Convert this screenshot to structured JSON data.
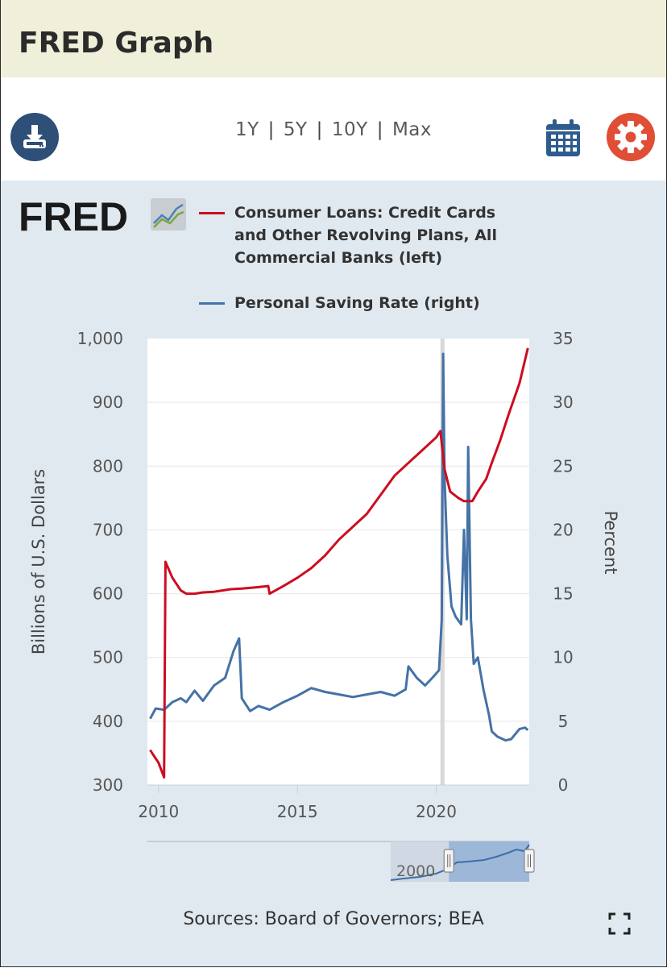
{
  "header": {
    "title": "FRED Graph"
  },
  "toolbar": {
    "ranges": [
      "1Y",
      "5Y",
      "10Y",
      "Max"
    ],
    "download_icon": "download-icon",
    "calendar_icon": "calendar-icon",
    "settings_icon": "gear-icon"
  },
  "logo": {
    "text": "FRED"
  },
  "colors": {
    "series1": "#cc0d20",
    "series2": "#4572a7",
    "panel": "#e1e9f0"
  },
  "chart_data": {
    "type": "line",
    "series": [
      {
        "name": "Consumer Loans: Credit Cards and Other Revolving Plans, All Commercial Banks (left)",
        "axis": "left",
        "x": [
          2009.7,
          2009.8,
          2010.0,
          2010.2,
          2010.25,
          2010.3,
          2010.5,
          2010.8,
          2011.0,
          2011.3,
          2011.6,
          2012.0,
          2012.3,
          2012.6,
          2013.0,
          2013.5,
          2013.95,
          2014.0,
          2014.5,
          2015.0,
          2015.5,
          2016.0,
          2016.5,
          2017.0,
          2017.5,
          2018.0,
          2018.5,
          2019.0,
          2019.5,
          2020.0,
          2020.15,
          2020.3,
          2020.5,
          2020.8,
          2021.0,
          2021.3,
          2021.5,
          2021.8,
          2022.0,
          2022.3,
          2022.6,
          2023.0,
          2023.3
        ],
        "values": [
          355,
          348,
          335,
          312,
          650,
          645,
          625,
          605,
          600,
          600,
          602,
          603,
          605,
          607,
          608,
          610,
          612,
          600,
          612,
          625,
          640,
          660,
          685,
          705,
          725,
          755,
          785,
          805,
          825,
          845,
          855,
          795,
          760,
          750,
          745,
          745,
          760,
          780,
          805,
          840,
          880,
          930,
          985
        ]
      },
      {
        "name": "Personal Saving Rate (right)",
        "axis": "right",
        "x": [
          2009.7,
          2009.9,
          2010.2,
          2010.5,
          2010.8,
          2011.0,
          2011.3,
          2011.6,
          2012.0,
          2012.4,
          2012.7,
          2012.9,
          2013.0,
          2013.3,
          2013.6,
          2014.0,
          2014.5,
          2015.0,
          2015.5,
          2016.0,
          2016.5,
          2017.0,
          2017.5,
          2018.0,
          2018.5,
          2018.9,
          2019.0,
          2019.3,
          2019.6,
          2019.9,
          2020.1,
          2020.2,
          2020.25,
          2020.3,
          2020.4,
          2020.55,
          2020.7,
          2020.9,
          2021.0,
          2021.1,
          2021.15,
          2021.25,
          2021.35,
          2021.5,
          2021.7,
          2021.9,
          2022.0,
          2022.2,
          2022.5,
          2022.7,
          2023.0,
          2023.2,
          2023.3
        ],
        "values": [
          5.2,
          6.0,
          5.9,
          6.5,
          6.8,
          6.5,
          7.4,
          6.6,
          7.8,
          8.4,
          10.5,
          11.5,
          6.8,
          5.8,
          6.2,
          5.9,
          6.5,
          7.0,
          7.6,
          7.3,
          7.1,
          6.9,
          7.1,
          7.3,
          7.0,
          7.5,
          9.3,
          8.4,
          7.8,
          8.5,
          9.0,
          13.0,
          33.8,
          24.0,
          18.0,
          14.0,
          13.2,
          12.6,
          20.0,
          13.0,
          26.5,
          13.0,
          9.5,
          10.0,
          7.5,
          5.5,
          4.2,
          3.8,
          3.5,
          3.6,
          4.4,
          4.5,
          4.3
        ]
      }
    ],
    "xlabel": "",
    "ylabel_left": "Billions of U.S. Dollars",
    "ylabel_right": "Percent",
    "xlim": [
      2009.6,
      2023.35
    ],
    "ylim_left": [
      300,
      1000
    ],
    "ylim_right": [
      0,
      35
    ],
    "x_ticks": [
      2010,
      2015,
      2020
    ],
    "x_tick_labels": [
      "2010",
      "2015",
      "2020"
    ],
    "y_ticks_left": [
      300,
      400,
      500,
      600,
      700,
      800,
      900,
      1000
    ],
    "y_tick_labels_left": [
      "300",
      "400",
      "500",
      "600",
      "700",
      "800",
      "900",
      "1,000"
    ],
    "y_ticks_right": [
      0,
      5,
      10,
      15,
      20,
      25,
      30,
      35
    ],
    "y_tick_labels_right": [
      "0",
      "5",
      "10",
      "15",
      "20",
      "25",
      "30",
      "35"
    ],
    "recession_band": [
      2020.15,
      2020.3
    ],
    "navigator": {
      "label": "2000",
      "selection_start_fraction": 0.42,
      "selection_end_fraction": 1.0
    },
    "grid": true,
    "legend_position": "top"
  },
  "footer": {
    "sources": "Sources: Board of Governors; BEA",
    "fullscreen_icon": "fullscreen-icon"
  }
}
